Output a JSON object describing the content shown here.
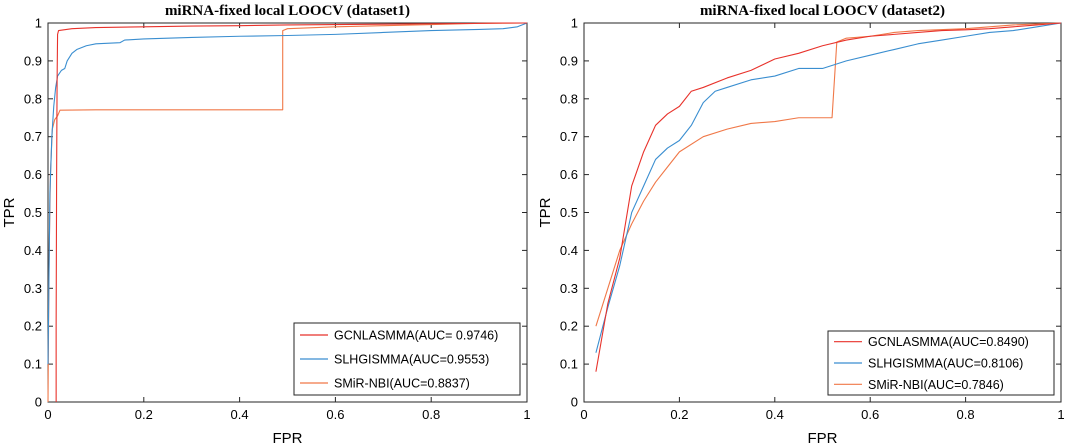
{
  "chart_data": [
    {
      "type": "line",
      "title": "miRNA-fixed local LOOCV (dataset1)",
      "xlabel": "FPR",
      "ylabel": "TPR",
      "xlim": [
        0,
        1
      ],
      "ylim": [
        0,
        1
      ],
      "xticks": [
        "0",
        "0.2",
        "0.4",
        "0.6",
        "0.8",
        "1"
      ],
      "yticks": [
        "0",
        "0.1",
        "0.2",
        "0.3",
        "0.4",
        "0.5",
        "0.6",
        "0.7",
        "0.8",
        "0.9",
        "1"
      ],
      "legend_position": "bottom-right",
      "series": [
        {
          "name": "GCNLASMMA(AUC= 0.9746)",
          "color": "#e8322b",
          "points": [
            [
              0.017,
              0
            ],
            [
              0.017,
              0.2
            ],
            [
              0.018,
              0.6
            ],
            [
              0.019,
              0.85
            ],
            [
              0.02,
              0.97
            ],
            [
              0.022,
              0.98
            ],
            [
              0.05,
              0.985
            ],
            [
              0.1,
              0.988
            ],
            [
              0.2,
              0.99
            ],
            [
              0.3,
              0.992
            ],
            [
              0.4,
              0.993
            ],
            [
              0.5,
              0.995
            ],
            [
              0.6,
              0.996
            ],
            [
              0.7,
              0.997
            ],
            [
              0.8,
              0.998
            ],
            [
              0.9,
              0.999
            ],
            [
              0.95,
              1
            ],
            [
              1,
              1
            ]
          ]
        },
        {
          "name": "SLHGISMMA(AUC=0.9553)",
          "color": "#3a8ed0",
          "points": [
            [
              0,
              0.1
            ],
            [
              0.004,
              0.55
            ],
            [
              0.008,
              0.7
            ],
            [
              0.012,
              0.78
            ],
            [
              0.016,
              0.83
            ],
            [
              0.02,
              0.86
            ],
            [
              0.028,
              0.875
            ],
            [
              0.035,
              0.88
            ],
            [
              0.04,
              0.9
            ],
            [
              0.05,
              0.92
            ],
            [
              0.06,
              0.93
            ],
            [
              0.08,
              0.94
            ],
            [
              0.1,
              0.945
            ],
            [
              0.15,
              0.948
            ],
            [
              0.16,
              0.955
            ],
            [
              0.2,
              0.958
            ],
            [
              0.3,
              0.962
            ],
            [
              0.4,
              0.965
            ],
            [
              0.5,
              0.967
            ],
            [
              0.6,
              0.97
            ],
            [
              0.7,
              0.975
            ],
            [
              0.8,
              0.98
            ],
            [
              0.9,
              0.983
            ],
            [
              0.95,
              0.985
            ],
            [
              0.98,
              0.99
            ],
            [
              1,
              1
            ]
          ]
        },
        {
          "name": "SMiR-NBI(AUC=0.8837)",
          "color": "#f07848",
          "points": [
            [
              0,
              0
            ],
            [
              0.002,
              0.35
            ],
            [
              0.005,
              0.6
            ],
            [
              0.009,
              0.72
            ],
            [
              0.014,
              0.745
            ],
            [
              0.02,
              0.755
            ],
            [
              0.025,
              0.77
            ],
            [
              0.1,
              0.771
            ],
            [
              0.2,
              0.771
            ],
            [
              0.3,
              0.771
            ],
            [
              0.4,
              0.771
            ],
            [
              0.49,
              0.771
            ],
            [
              0.49,
              0.98
            ],
            [
              0.5,
              0.985
            ],
            [
              0.6,
              0.99
            ],
            [
              0.7,
              0.993
            ],
            [
              0.8,
              0.996
            ],
            [
              0.9,
              0.999
            ],
            [
              1,
              1
            ]
          ]
        }
      ]
    },
    {
      "type": "line",
      "title": "miRNA-fixed local LOOCV (dataset2)",
      "xlabel": "FPR",
      "ylabel": "TPR",
      "xlim": [
        0,
        1
      ],
      "ylim": [
        0,
        1
      ],
      "xticks": [
        "0",
        "0.2",
        "0.4",
        "0.6",
        "0.8",
        "1"
      ],
      "yticks": [
        "0",
        "0.1",
        "0.2",
        "0.3",
        "0.4",
        "0.5",
        "0.6",
        "0.7",
        "0.8",
        "0.9",
        "1"
      ],
      "legend_position": "bottom-right",
      "series": [
        {
          "name": "GCNLASMMA(AUC=0.8490)",
          "color": "#e8322b",
          "points": [
            [
              0.025,
              0.08
            ],
            [
              0.05,
              0.26
            ],
            [
              0.075,
              0.38
            ],
            [
              0.1,
              0.57
            ],
            [
              0.125,
              0.66
            ],
            [
              0.15,
              0.73
            ],
            [
              0.175,
              0.76
            ],
            [
              0.2,
              0.78
            ],
            [
              0.225,
              0.82
            ],
            [
              0.25,
              0.83
            ],
            [
              0.3,
              0.855
            ],
            [
              0.35,
              0.875
            ],
            [
              0.4,
              0.905
            ],
            [
              0.45,
              0.92
            ],
            [
              0.5,
              0.94
            ],
            [
              0.55,
              0.955
            ],
            [
              0.6,
              0.965
            ],
            [
              0.65,
              0.97
            ],
            [
              0.7,
              0.975
            ],
            [
              0.75,
              0.98
            ],
            [
              0.8,
              0.982
            ],
            [
              0.85,
              0.985
            ],
            [
              0.9,
              0.99
            ],
            [
              0.95,
              0.995
            ],
            [
              1,
              1
            ]
          ]
        },
        {
          "name": "SLHGISMMA(AUC=0.8106)",
          "color": "#3a8ed0",
          "points": [
            [
              0.025,
              0.13
            ],
            [
              0.05,
              0.25
            ],
            [
              0.075,
              0.36
            ],
            [
              0.1,
              0.5
            ],
            [
              0.125,
              0.57
            ],
            [
              0.15,
              0.64
            ],
            [
              0.175,
              0.67
            ],
            [
              0.2,
              0.69
            ],
            [
              0.225,
              0.73
            ],
            [
              0.25,
              0.79
            ],
            [
              0.275,
              0.82
            ],
            [
              0.3,
              0.83
            ],
            [
              0.35,
              0.85
            ],
            [
              0.4,
              0.86
            ],
            [
              0.45,
              0.88
            ],
            [
              0.5,
              0.88
            ],
            [
              0.55,
              0.9
            ],
            [
              0.6,
              0.915
            ],
            [
              0.65,
              0.93
            ],
            [
              0.7,
              0.945
            ],
            [
              0.75,
              0.955
            ],
            [
              0.8,
              0.965
            ],
            [
              0.85,
              0.975
            ],
            [
              0.9,
              0.98
            ],
            [
              0.95,
              0.99
            ],
            [
              1,
              1
            ]
          ]
        },
        {
          "name": "SMiR-NBI(AUC=0.7846)",
          "color": "#f07848",
          "points": [
            [
              0.025,
              0.2
            ],
            [
              0.05,
              0.3
            ],
            [
              0.075,
              0.4
            ],
            [
              0.1,
              0.47
            ],
            [
              0.125,
              0.53
            ],
            [
              0.15,
              0.58
            ],
            [
              0.175,
              0.62
            ],
            [
              0.2,
              0.66
            ],
            [
              0.25,
              0.7
            ],
            [
              0.3,
              0.72
            ],
            [
              0.35,
              0.735
            ],
            [
              0.4,
              0.74
            ],
            [
              0.45,
              0.75
            ],
            [
              0.5,
              0.75
            ],
            [
              0.52,
              0.75
            ],
            [
              0.53,
              0.95
            ],
            [
              0.55,
              0.96
            ],
            [
              0.6,
              0.965
            ],
            [
              0.65,
              0.975
            ],
            [
              0.7,
              0.98
            ],
            [
              0.8,
              0.985
            ],
            [
              0.85,
              0.99
            ],
            [
              0.9,
              0.995
            ],
            [
              1,
              1
            ]
          ]
        }
      ]
    }
  ]
}
